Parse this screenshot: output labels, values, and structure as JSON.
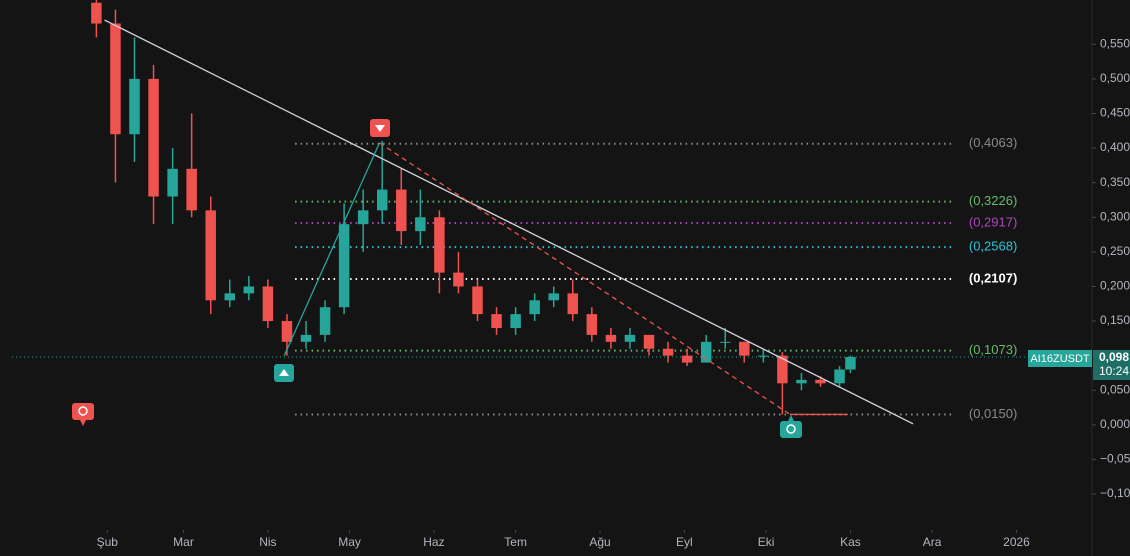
{
  "chart_data": {
    "type": "candlestick",
    "symbol": "AI16ZUSDT",
    "last_price": {
      "value": 0.098,
      "label": "0,098"
    },
    "countdown": "10:24",
    "up_color": "#26a69a",
    "down_color": "#ef5350",
    "grid": false,
    "xlim": [
      -35,
      361
    ],
    "ylim": [
      -0.152,
      0.614
    ],
    "xticks": [
      {
        "value": 0,
        "label": "Şub"
      },
      {
        "value": 28,
        "label": "Mar"
      },
      {
        "value": 59,
        "label": "Nis"
      },
      {
        "value": 89,
        "label": "May"
      },
      {
        "value": 120,
        "label": "Haz"
      },
      {
        "value": 150,
        "label": "Tem"
      },
      {
        "value": 181,
        "label": "Ağu"
      },
      {
        "value": 212,
        "label": "Eyl"
      },
      {
        "value": 242,
        "label": "Eki"
      },
      {
        "value": 273,
        "label": "Kas"
      },
      {
        "value": 303,
        "label": "Ara"
      },
      {
        "value": 334,
        "label": "2026"
      }
    ],
    "yticks": [
      {
        "value": 0.55,
        "label": "0,550"
      },
      {
        "value": 0.5,
        "label": "0,500"
      },
      {
        "value": 0.45,
        "label": "0,450"
      },
      {
        "value": 0.4,
        "label": "0,400"
      },
      {
        "value": 0.35,
        "label": "0,350"
      },
      {
        "value": 0.3,
        "label": "0,300"
      },
      {
        "value": 0.25,
        "label": "0,250"
      },
      {
        "value": 0.2,
        "label": "0,200"
      },
      {
        "value": 0.15,
        "label": "0,150"
      },
      {
        "value": 0.1,
        "label": "0,100"
      },
      {
        "value": 0.05,
        "label": "0,050"
      },
      {
        "value": 0,
        "label": "0,000"
      },
      {
        "value": -0.05,
        "label": "−0,050"
      },
      {
        "value": -0.1,
        "label": "−0,100"
      }
    ],
    "x": [
      -4,
      3,
      10,
      17,
      24,
      31,
      38,
      45,
      52,
      59,
      66,
      73,
      80,
      87,
      94,
      101,
      108,
      115,
      122,
      129,
      136,
      143,
      150,
      157,
      164,
      171,
      178,
      185,
      192,
      199,
      206,
      213,
      220,
      227,
      234,
      241,
      248,
      255,
      262,
      269,
      273
    ],
    "open": [
      0.61,
      0.58,
      0.42,
      0.5,
      0.33,
      0.37,
      0.31,
      0.18,
      0.19,
      0.2,
      0.15,
      0.12,
      0.13,
      0.17,
      0.29,
      0.31,
      0.34,
      0.28,
      0.3,
      0.22,
      0.2,
      0.16,
      0.14,
      0.16,
      0.18,
      0.19,
      0.16,
      0.13,
      0.12,
      0.13,
      0.11,
      0.1,
      0.09,
      0.12,
      0.12,
      0.1,
      0.1,
      0.06,
      0.065,
      0.06,
      0.08
    ],
    "high": [
      0.62,
      0.6,
      0.56,
      0.52,
      0.4,
      0.45,
      0.33,
      0.21,
      0.215,
      0.21,
      0.16,
      0.15,
      0.18,
      0.32,
      0.34,
      0.41,
      0.37,
      0.34,
      0.31,
      0.25,
      0.21,
      0.17,
      0.17,
      0.19,
      0.2,
      0.21,
      0.17,
      0.14,
      0.14,
      0.13,
      0.12,
      0.11,
      0.13,
      0.14,
      0.12,
      0.11,
      0.105,
      0.075,
      0.07,
      0.085,
      0.1
    ],
    "low": [
      0.56,
      0.35,
      0.38,
      0.29,
      0.29,
      0.3,
      0.16,
      0.17,
      0.18,
      0.14,
      0.1,
      0.11,
      0.12,
      0.16,
      0.25,
      0.29,
      0.26,
      0.26,
      0.19,
      0.19,
      0.15,
      0.13,
      0.13,
      0.15,
      0.17,
      0.15,
      0.12,
      0.11,
      0.11,
      0.1,
      0.09,
      0.085,
      0.09,
      0.11,
      0.09,
      0.09,
      0.015,
      0.05,
      0.055,
      0.055,
      0.075
    ],
    "close": [
      0.58,
      0.42,
      0.5,
      0.33,
      0.37,
      0.31,
      0.18,
      0.19,
      0.2,
      0.15,
      0.12,
      0.13,
      0.17,
      0.29,
      0.31,
      0.34,
      0.28,
      0.3,
      0.22,
      0.2,
      0.16,
      0.14,
      0.16,
      0.18,
      0.19,
      0.16,
      0.13,
      0.12,
      0.13,
      0.11,
      0.1,
      0.09,
      0.12,
      0.12,
      0.1,
      0.1,
      0.06,
      0.065,
      0.06,
      0.08,
      0.098
    ],
    "levels": [
      {
        "value": 0.4063,
        "label": "(0,4063)",
        "color": "#8a8a8a"
      },
      {
        "value": 0.3226,
        "label": "(0,3226)",
        "color": "#66bb6a"
      },
      {
        "value": 0.2917,
        "label": "(0,2917)",
        "color": "#ab47bc"
      },
      {
        "value": 0.2568,
        "label": "(0,2568)",
        "color": "#26c6da"
      },
      {
        "value": 0.2107,
        "label": "(0,2107)",
        "color": "#ffffff"
      },
      {
        "value": 0.1073,
        "label": "(0,1073)",
        "color": "#66bb6a"
      },
      {
        "value": 0.015,
        "label": "(0,0150)",
        "color": "#8a8a8a"
      }
    ],
    "levels_x": [
      69,
      311
    ],
    "trendlines": [
      {
        "color": "#d1d4dc",
        "dash": false,
        "x": [
          -1,
          296
        ],
        "y": [
          0.585,
          0.0015
        ]
      },
      {
        "color": "#ef5350",
        "dash": true,
        "x": [
          100,
          251
        ],
        "y": [
          0.4075,
          0.0145
        ]
      },
      {
        "color": "#26a69a",
        "dash": false,
        "x": [
          65,
          100
        ],
        "y": [
          0.1,
          0.4075
        ]
      },
      {
        "color": "#ef5350",
        "dash": false,
        "x": [
          251,
          272
        ],
        "y": [
          0.015,
          0.015
        ]
      }
    ]
  }
}
